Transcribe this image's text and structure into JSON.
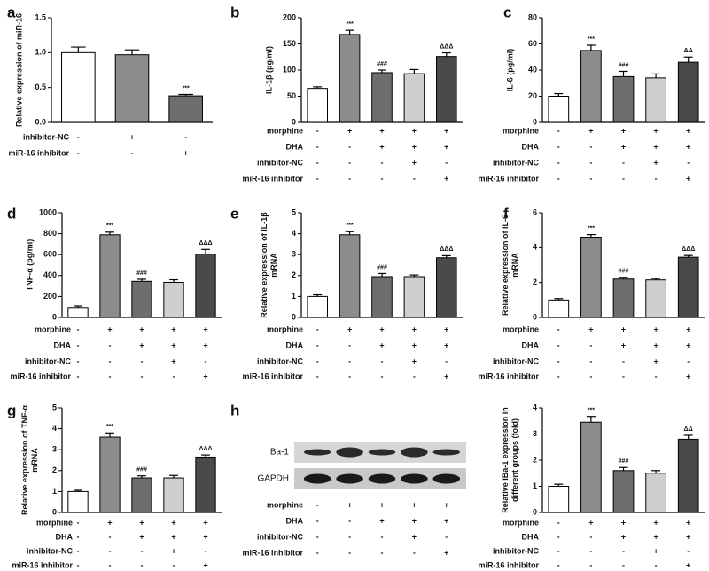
{
  "chart_data": [
    {
      "type": "bar",
      "panel": "a",
      "ylabel": [
        "Relative expression of miR-16"
      ],
      "values": [
        1.0,
        0.97,
        0.38
      ],
      "errors": [
        0.08,
        0.07,
        0.02
      ],
      "annotations": [
        null,
        null,
        "***"
      ],
      "colors": [
        "#ffffff",
        "#8c8c8c",
        "#6e6e6e"
      ],
      "ylim": [
        0,
        1.5
      ],
      "yticks": [
        {
          "value": 0,
          "label": "0.0"
        },
        {
          "value": 0.5,
          "label": "0.5"
        },
        {
          "value": 1,
          "label": "1.0"
        },
        {
          "value": 1.5,
          "label": "1.5"
        }
      ],
      "conditions": [
        {
          "name": "inhibitor-NC",
          "signs": [
            "-",
            "+",
            "-"
          ]
        },
        {
          "name": "miR-16 inhibitor",
          "signs": [
            "-",
            "-",
            "+"
          ]
        }
      ]
    },
    {
      "type": "bar",
      "panel": "b",
      "ylabel": [
        "IL-1β (pg/ml)"
      ],
      "values": [
        65,
        168,
        95,
        93,
        126
      ],
      "errors": [
        3,
        8,
        5,
        8,
        7
      ],
      "annotations": [
        null,
        "***",
        "###",
        null,
        "ΔΔΔ"
      ],
      "colors": [
        "#ffffff",
        "#8c8c8c",
        "#6e6e6e",
        "#cfcfcf",
        "#4a4a4a"
      ],
      "ylim": [
        0,
        200
      ],
      "yticks": [
        0,
        50,
        100,
        150,
        200
      ],
      "conditions": [
        {
          "name": "morphine",
          "signs": [
            "-",
            "+",
            "+",
            "+",
            "+"
          ]
        },
        {
          "name": "DHA",
          "signs": [
            "-",
            "-",
            "+",
            "+",
            "+"
          ]
        },
        {
          "name": "inhibitor-NC",
          "signs": [
            "-",
            "-",
            "-",
            "+",
            "-"
          ]
        },
        {
          "name": "miR-16 inhibitor",
          "signs": [
            "-",
            "-",
            "-",
            "-",
            "+"
          ]
        }
      ]
    },
    {
      "type": "bar",
      "panel": "c",
      "ylabel": [
        "IL-6 (pg/ml)"
      ],
      "values": [
        20,
        55,
        35,
        34,
        46
      ],
      "errors": [
        2,
        4,
        4,
        3,
        4
      ],
      "annotations": [
        null,
        "***",
        "###",
        null,
        "ΔΔ"
      ],
      "colors": [
        "#ffffff",
        "#8c8c8c",
        "#6e6e6e",
        "#cfcfcf",
        "#4a4a4a"
      ],
      "ylim": [
        0,
        80
      ],
      "yticks": [
        0,
        20,
        40,
        60,
        80
      ],
      "conditions": [
        {
          "name": "morphine",
          "signs": [
            "-",
            "+",
            "+",
            "+",
            "+"
          ]
        },
        {
          "name": "DHA",
          "signs": [
            "-",
            "-",
            "+",
            "+",
            "+"
          ]
        },
        {
          "name": "inhibitor-NC",
          "signs": [
            "-",
            "-",
            "-",
            "+",
            "-"
          ]
        },
        {
          "name": "miR-16 inhibitor",
          "signs": [
            "-",
            "-",
            "-",
            "-",
            "+"
          ]
        }
      ]
    },
    {
      "type": "bar",
      "panel": "d",
      "ylabel": [
        "TNF-α (pg/ml)"
      ],
      "values": [
        95,
        790,
        345,
        335,
        605
      ],
      "errors": [
        15,
        25,
        20,
        25,
        45
      ],
      "annotations": [
        null,
        "***",
        "###",
        null,
        "ΔΔΔ"
      ],
      "colors": [
        "#ffffff",
        "#8c8c8c",
        "#6e6e6e",
        "#cfcfcf",
        "#4a4a4a"
      ],
      "ylim": [
        0,
        1000
      ],
      "yticks": [
        0,
        200,
        400,
        600,
        800,
        1000
      ],
      "conditions": [
        {
          "name": "morphine",
          "signs": [
            "-",
            "+",
            "+",
            "+",
            "+"
          ]
        },
        {
          "name": "DHA",
          "signs": [
            "-",
            "-",
            "+",
            "+",
            "+"
          ]
        },
        {
          "name": "inhibitor-NC",
          "signs": [
            "-",
            "-",
            "-",
            "+",
            "-"
          ]
        },
        {
          "name": "miR-16 inhibitor",
          "signs": [
            "-",
            "-",
            "-",
            "-",
            "+"
          ]
        }
      ]
    },
    {
      "type": "bar",
      "panel": "e",
      "ylabel": [
        "Relative expression of IL-1β",
        "mRNA"
      ],
      "values": [
        1.0,
        3.95,
        1.95,
        1.95,
        2.85
      ],
      "errors": [
        0.08,
        0.15,
        0.15,
        0.08,
        0.1
      ],
      "annotations": [
        null,
        "***",
        "###",
        null,
        "ΔΔΔ"
      ],
      "colors": [
        "#ffffff",
        "#8c8c8c",
        "#6e6e6e",
        "#cfcfcf",
        "#4a4a4a"
      ],
      "ylim": [
        0,
        5
      ],
      "yticks": [
        0,
        1,
        2,
        3,
        4,
        5
      ],
      "conditions": [
        {
          "name": "morphine",
          "signs": [
            "-",
            "+",
            "+",
            "+",
            "+"
          ]
        },
        {
          "name": "DHA",
          "signs": [
            "-",
            "-",
            "+",
            "+",
            "+"
          ]
        },
        {
          "name": "inhibitor-NC",
          "signs": [
            "-",
            "-",
            "-",
            "+",
            "-"
          ]
        },
        {
          "name": "miR-16 inhibitor",
          "signs": [
            "-",
            "-",
            "-",
            "-",
            "+"
          ]
        }
      ]
    },
    {
      "type": "bar",
      "panel": "f",
      "ylabel": [
        "Relative expression of IL-6",
        "mRNA"
      ],
      "values": [
        1.0,
        4.6,
        2.2,
        2.15,
        3.45
      ],
      "errors": [
        0.08,
        0.15,
        0.1,
        0.08,
        0.1
      ],
      "annotations": [
        null,
        "***",
        "###",
        null,
        "ΔΔΔ"
      ],
      "colors": [
        "#ffffff",
        "#8c8c8c",
        "#6e6e6e",
        "#cfcfcf",
        "#4a4a4a"
      ],
      "ylim": [
        0,
        6
      ],
      "yticks": [
        0,
        2,
        4,
        6
      ],
      "conditions": [
        {
          "name": "morphine",
          "signs": [
            "-",
            "+",
            "+",
            "+",
            "+"
          ]
        },
        {
          "name": "DHA",
          "signs": [
            "-",
            "-",
            "+",
            "+",
            "+"
          ]
        },
        {
          "name": "inhibitor-NC",
          "signs": [
            "-",
            "-",
            "-",
            "+",
            "-"
          ]
        },
        {
          "name": "miR-16 inhibitor",
          "signs": [
            "-",
            "-",
            "-",
            "-",
            "+"
          ]
        }
      ]
    },
    {
      "type": "bar",
      "panel": "g",
      "ylabel": [
        "Relative expression of TNF-α",
        "mRNA"
      ],
      "values": [
        1.0,
        3.6,
        1.65,
        1.65,
        2.65
      ],
      "errors": [
        0.06,
        0.2,
        0.1,
        0.12,
        0.1
      ],
      "annotations": [
        null,
        "***",
        "###",
        null,
        "ΔΔΔ"
      ],
      "colors": [
        "#ffffff",
        "#8c8c8c",
        "#6e6e6e",
        "#cfcfcf",
        "#4a4a4a"
      ],
      "ylim": [
        0,
        5
      ],
      "yticks": [
        0,
        1,
        2,
        3,
        4,
        5
      ],
      "conditions": [
        {
          "name": "morphine",
          "signs": [
            "-",
            "+",
            "+",
            "+",
            "+"
          ]
        },
        {
          "name": "DHA",
          "signs": [
            "-",
            "-",
            "+",
            "+",
            "+"
          ]
        },
        {
          "name": "inhibitor-NC",
          "signs": [
            "-",
            "-",
            "-",
            "+",
            "-"
          ]
        },
        {
          "name": "miR-16 inhibitor",
          "signs": [
            "-",
            "-",
            "-",
            "-",
            "+"
          ]
        }
      ]
    },
    {
      "type": "blot",
      "panel": "h",
      "bands": [
        "IBa-1",
        "GAPDH"
      ],
      "conditions": [
        {
          "name": "morphine",
          "signs": [
            "-",
            "+",
            "+",
            "+",
            "+"
          ]
        },
        {
          "name": "DHA",
          "signs": [
            "-",
            "-",
            "+",
            "+",
            "+"
          ]
        },
        {
          "name": "inhibitor-NC",
          "signs": [
            "-",
            "-",
            "-",
            "+",
            "-"
          ]
        },
        {
          "name": "miR-16 inhibitor",
          "signs": [
            "-",
            "-",
            "-",
            "-",
            "+"
          ]
        }
      ]
    },
    {
      "type": "bar",
      "ylabel": [
        "Relative IBa-1 expression in",
        "different groups (fold)"
      ],
      "values": [
        1.0,
        3.45,
        1.6,
        1.5,
        2.8
      ],
      "errors": [
        0.08,
        0.22,
        0.12,
        0.1,
        0.15
      ],
      "annotations": [
        null,
        "***",
        "###",
        null,
        "ΔΔ"
      ],
      "colors": [
        "#ffffff",
        "#8c8c8c",
        "#6e6e6e",
        "#cfcfcf",
        "#4a4a4a"
      ],
      "ylim": [
        0,
        4
      ],
      "yticks": [
        0,
        1,
        2,
        3,
        4
      ],
      "conditions": [
        {
          "name": "morphine",
          "signs": [
            "-",
            "+",
            "+",
            "+",
            "+"
          ]
        },
        {
          "name": "DHA",
          "signs": [
            "-",
            "-",
            "+",
            "+",
            "+"
          ]
        },
        {
          "name": "inhibitor-NC",
          "signs": [
            "-",
            "-",
            "-",
            "+",
            "-"
          ]
        },
        {
          "name": "miR-16 inhibitor",
          "signs": [
            "-",
            "-",
            "-",
            "-",
            "+"
          ]
        }
      ]
    }
  ]
}
